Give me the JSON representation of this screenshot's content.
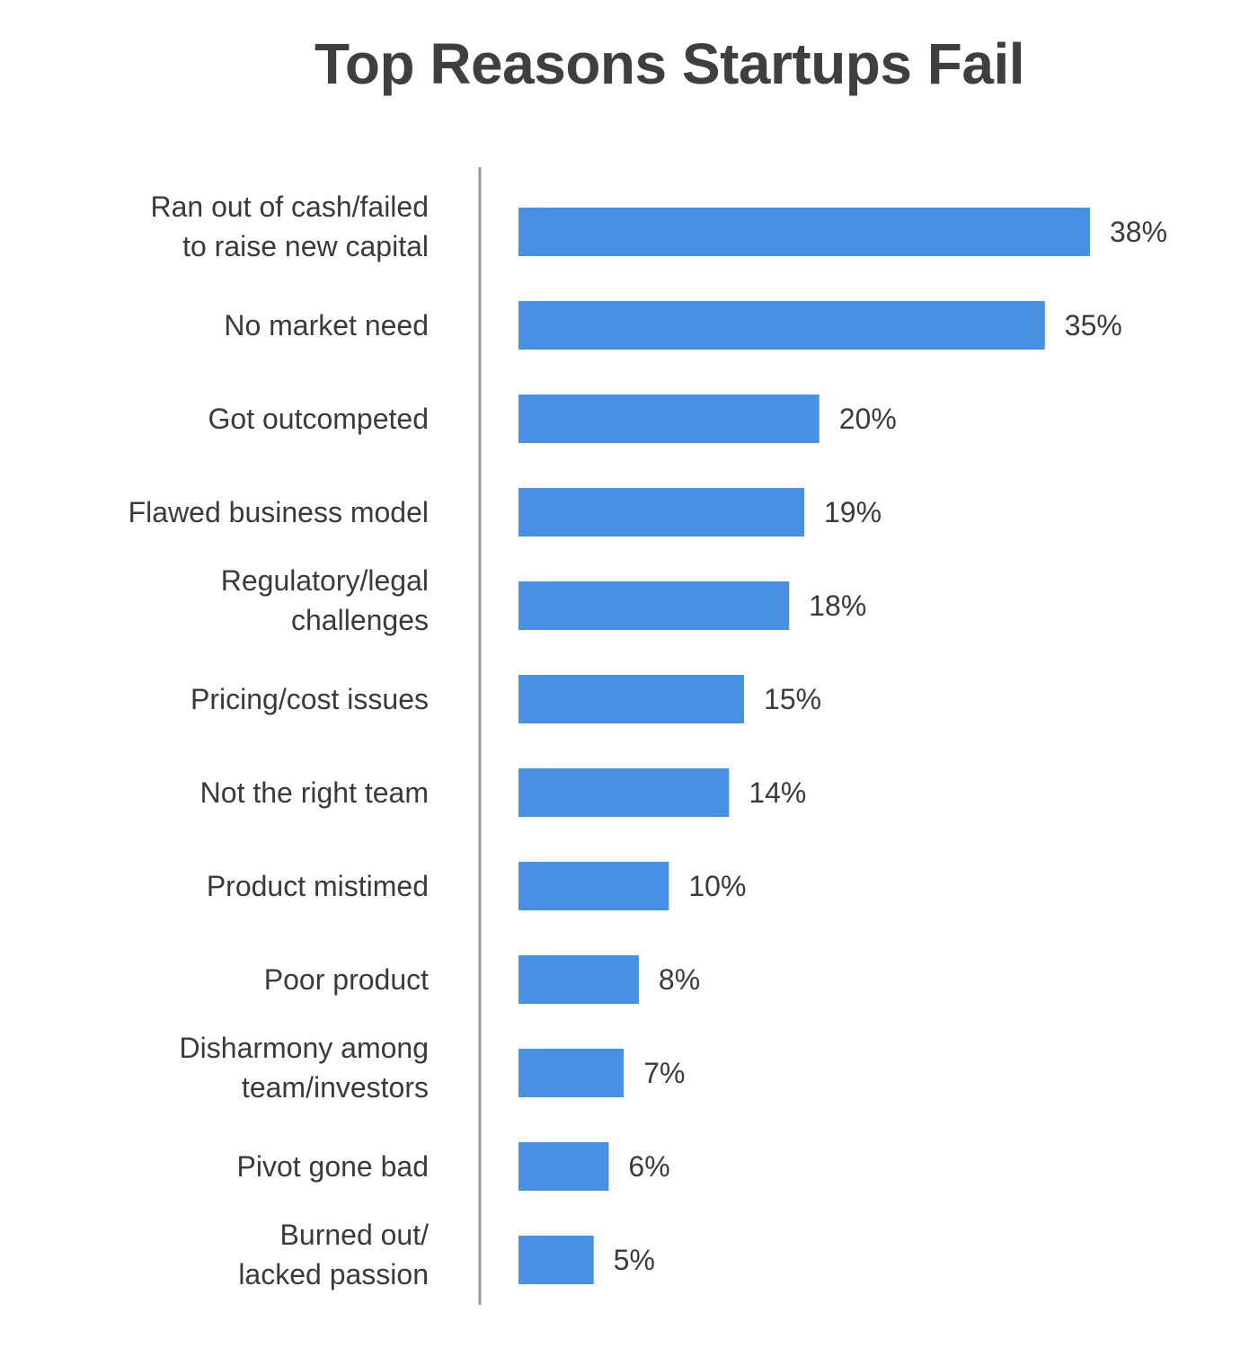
{
  "chart_data": {
    "type": "bar",
    "orientation": "horizontal",
    "title": "Top Reasons Startups Fail",
    "xlabel": "",
    "ylabel": "",
    "xlim": [
      0,
      40
    ],
    "grid": false,
    "bar_color": "#4a90e2",
    "categories": [
      [
        "Ran out of cash/failed",
        "to raise new capital"
      ],
      [
        "No market need"
      ],
      [
        "Got outcompeted"
      ],
      [
        "Flawed business model"
      ],
      [
        "Regulatory/legal",
        "challenges"
      ],
      [
        "Pricing/cost issues"
      ],
      [
        "Not the right team"
      ],
      [
        "Product mistimed"
      ],
      [
        "Poor product"
      ],
      [
        "Disharmony among",
        "team/investors"
      ],
      [
        "Pivot gone bad"
      ],
      [
        "Burned out/",
        "lacked passion"
      ]
    ],
    "values": [
      38,
      35,
      20,
      19,
      18,
      15,
      14,
      10,
      8,
      7,
      6,
      5
    ],
    "value_labels": [
      "38%",
      "35%",
      "20%",
      "19%",
      "18%",
      "15%",
      "14%",
      "10%",
      "8%",
      "7%",
      "6%",
      "5%"
    ]
  }
}
